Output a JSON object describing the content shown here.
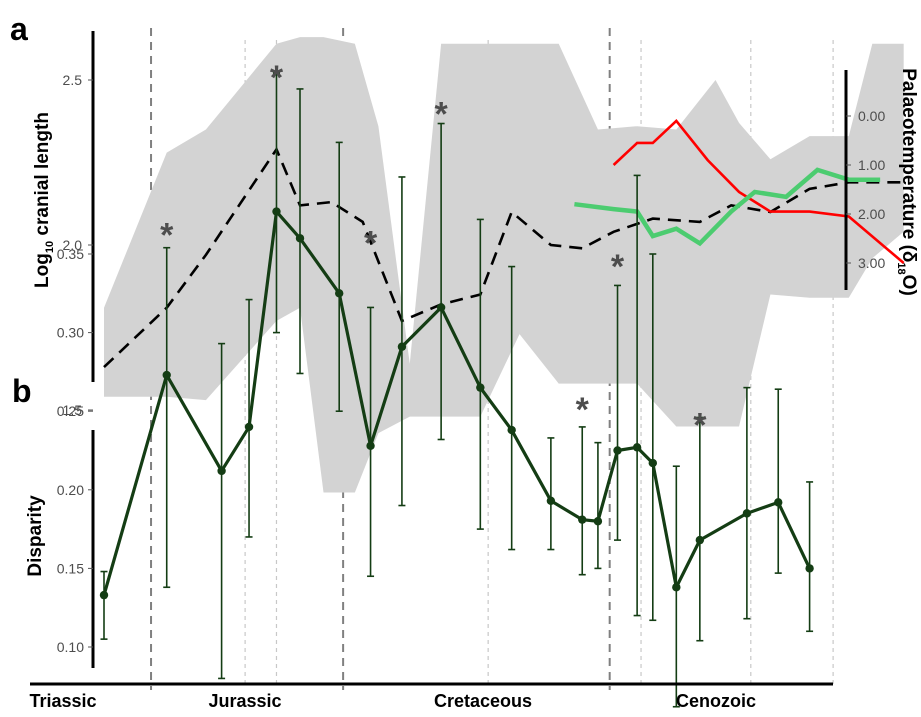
{
  "panel_labels": {
    "a": "a",
    "b": "b"
  },
  "periods": [
    "Triassic",
    "Jurassic",
    "Cretaceous",
    "Cenozoic"
  ],
  "colors": {
    "envelope": "#d3d3d3",
    "mean_line": "#000000",
    "red_line": "#ff0000",
    "green_line": "#4ccc70",
    "disparity": "#143d14",
    "asterisk": "#4d4d4d",
    "period_boundary": "#808080",
    "minor_boundary": "#c8c8c8"
  },
  "chart_data": [
    {
      "panel": "a",
      "type": "line",
      "ylabel_main": "Log",
      "ylabel_sub": "10",
      "ylabel_rest": " cranial length",
      "ylim": [
        1.38,
        2.7
      ],
      "yticks": [
        "1.5",
        "2.0",
        "2.5"
      ],
      "ytick_values": [
        1.5,
        2.0,
        2.5
      ],
      "y2label_main": "Palaeotemperature (δ",
      "y2label_sub": "18",
      "y2label_rest": "O)",
      "y2lim": [
        -0.6,
        3.6
      ],
      "y2ticks": [
        "0.00",
        "1.00",
        "2.00",
        "3.00"
      ],
      "y2tick_values": [
        0,
        1,
        2,
        3
      ],
      "x": [
        0,
        0.8,
        1.3,
        2.2,
        2.5,
        2.9,
        3.3,
        3.8,
        4.3,
        4.8,
        5.2,
        5.7,
        6.1,
        6.5,
        7.0,
        7.6,
        8.0,
        8.5,
        9.0,
        9.5,
        10.2
      ],
      "series": [
        {
          "role": "envelope",
          "x": [
            0,
            0.8,
            1.3,
            2.2,
            2.5,
            2.8,
            3.2,
            3.5,
            3.9,
            4.3,
            4.8,
            5.3,
            5.8,
            6.3,
            6.8,
            7.3,
            7.8,
            8.1,
            8.5,
            9.0,
            9.5,
            9.8,
            10.2
          ],
          "upper": [
            1.81,
            2.28,
            2.35,
            2.61,
            2.63,
            2.63,
            2.61,
            2.36,
            1.64,
            2.61,
            2.61,
            2.61,
            2.61,
            2.35,
            2.36,
            2.35,
            2.5,
            2.37,
            2.26,
            2.33,
            2.33,
            2.61,
            2.61
          ],
          "lower": [
            1.54,
            1.54,
            1.53,
            1.77,
            1.81,
            1.25,
            1.25,
            1.43,
            1.48,
            1.48,
            1.48,
            1.73,
            1.58,
            1.58,
            1.58,
            1.45,
            1.45,
            1.45,
            1.85,
            1.84,
            1.84,
            1.96,
            2.04
          ]
        },
        {
          "role": "mean",
          "values": [
            1.63,
            1.81,
            1.97,
            2.29,
            2.12,
            2.13,
            2.07,
            1.77,
            1.82,
            1.85,
            2.1,
            2.0,
            1.99,
            2.04,
            2.08,
            2.07,
            2.12,
            2.1,
            2.17,
            2.19,
            2.19
          ]
        },
        {
          "role": "temperature-red",
          "axis": "right",
          "x": [
            6.5,
            6.8,
            7.0,
            7.3,
            7.7,
            8.1,
            8.5,
            9.0,
            9.5,
            10.2
          ],
          "values": [
            1.0,
            0.55,
            0.55,
            0.1,
            0.9,
            1.55,
            1.95,
            1.95,
            2.05,
            3.0
          ]
        },
        {
          "role": "temperature-green",
          "axis": "right",
          "x": [
            6.0,
            6.5,
            6.8,
            7.0,
            7.3,
            7.6,
            8.0,
            8.3,
            8.7,
            9.1,
            9.5,
            9.9
          ],
          "values": [
            1.8,
            1.9,
            1.95,
            2.45,
            2.3,
            2.6,
            1.95,
            1.55,
            1.65,
            1.1,
            1.3,
            1.3
          ]
        }
      ]
    },
    {
      "panel": "b",
      "type": "line",
      "ylabel": "Disparity",
      "ylim": [
        0.08,
        0.37
      ],
      "yticks": [
        "0.10",
        "0.15",
        "0.20",
        "0.25",
        "0.30",
        "0.35"
      ],
      "ytick_values": [
        0.1,
        0.15,
        0.2,
        0.25,
        0.3,
        0.35
      ],
      "x": [
        0,
        0.8,
        1.5,
        1.85,
        2.2,
        2.5,
        3.0,
        3.4,
        3.8,
        4.3,
        4.8,
        5.2,
        5.7,
        6.1,
        6.3,
        6.55,
        6.8,
        7.0,
        7.3,
        7.6,
        8.2,
        8.6,
        9.0
      ],
      "values": [
        0.133,
        0.273,
        0.212,
        0.24,
        0.377,
        0.36,
        0.325,
        0.228,
        0.291,
        0.316,
        0.265,
        0.238,
        0.193,
        0.181,
        0.18,
        0.225,
        0.227,
        0.217,
        0.138,
        0.168,
        0.185,
        0.192,
        0.15
      ],
      "err_low": [
        0.105,
        0.138,
        0.08,
        0.17,
        0.3,
        0.274,
        0.25,
        0.145,
        0.19,
        0.232,
        0.175,
        0.162,
        0.162,
        0.146,
        0.15,
        0.168,
        0.12,
        0.117,
        0.062,
        0.104,
        0.118,
        0.147,
        0.11
      ],
      "err_high": [
        0.148,
        0.354,
        0.293,
        0.321,
        0.465,
        0.455,
        0.421,
        0.316,
        0.399,
        0.433,
        0.372,
        0.342,
        0.233,
        0.24,
        0.23,
        0.33,
        0.4,
        0.35,
        0.215,
        0.246,
        0.265,
        0.264,
        0.205
      ],
      "asterisks": [
        "*",
        "*",
        "*",
        "*",
        "*",
        "*",
        "*"
      ],
      "asterisk_x": [
        0.8,
        2.2,
        3.4,
        4.3,
        6.1,
        6.55,
        7.6
      ],
      "asterisk_y": [
        0.365,
        0.465,
        0.36,
        0.442,
        0.254,
        0.345,
        0.244
      ]
    }
  ]
}
